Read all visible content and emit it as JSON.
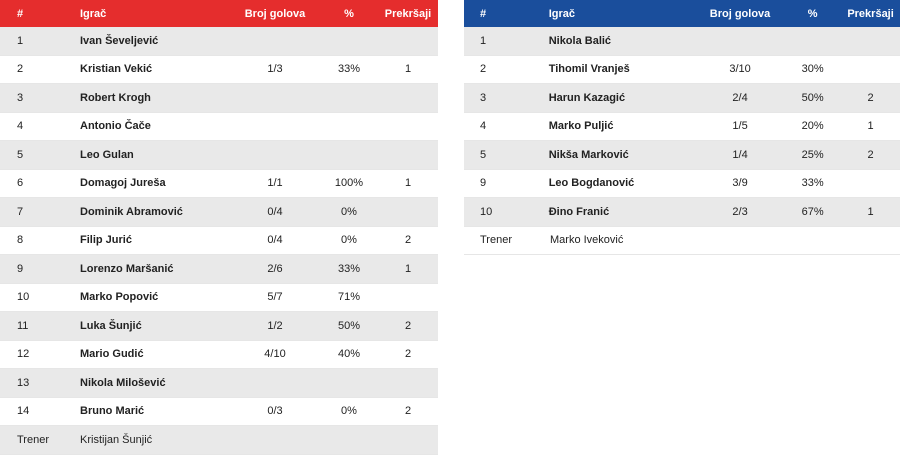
{
  "headers": {
    "num": "#",
    "player": "Igrač",
    "goals": "Broj golova",
    "pct": "%",
    "fouls": "Prekršaji"
  },
  "colors": {
    "home": "#e52d2d",
    "away": "#1a4e9c"
  },
  "home": {
    "rows": [
      {
        "num": "1",
        "name": "Ivan Ševeljević",
        "goals": "",
        "pct": "",
        "fouls": ""
      },
      {
        "num": "2",
        "name": "Kristian Vekić",
        "goals": "1/3",
        "pct": "33%",
        "fouls": "1"
      },
      {
        "num": "3",
        "name": "Robert Krogh",
        "goals": "",
        "pct": "",
        "fouls": ""
      },
      {
        "num": "4",
        "name": "Antonio Čače",
        "goals": "",
        "pct": "",
        "fouls": ""
      },
      {
        "num": "5",
        "name": "Leo Gulan",
        "goals": "",
        "pct": "",
        "fouls": ""
      },
      {
        "num": "6",
        "name": "Domagoj Jureša",
        "goals": "1/1",
        "pct": "100%",
        "fouls": "1"
      },
      {
        "num": "7",
        "name": "Dominik Abramović",
        "goals": "0/4",
        "pct": "0%",
        "fouls": ""
      },
      {
        "num": "8",
        "name": "Filip Jurić",
        "goals": "0/4",
        "pct": "0%",
        "fouls": "2"
      },
      {
        "num": "9",
        "name": "Lorenzo Maršanić",
        "goals": "2/6",
        "pct": "33%",
        "fouls": "1"
      },
      {
        "num": "10",
        "name": "Marko Popović",
        "goals": "5/7",
        "pct": "71%",
        "fouls": ""
      },
      {
        "num": "11",
        "name": "Luka Šunjić",
        "goals": "1/2",
        "pct": "50%",
        "fouls": "2"
      },
      {
        "num": "12",
        "name": "Mario Gudić",
        "goals": "4/10",
        "pct": "40%",
        "fouls": "2"
      },
      {
        "num": "13",
        "name": "Nikola Milošević",
        "goals": "",
        "pct": "",
        "fouls": ""
      },
      {
        "num": "14",
        "name": "Bruno Marić",
        "goals": "0/3",
        "pct": "0%",
        "fouls": "2"
      }
    ],
    "coach_label": "Trener",
    "coach": "Kristijan Šunjić"
  },
  "away": {
    "rows": [
      {
        "num": "1",
        "name": "Nikola Balić",
        "goals": "",
        "pct": "",
        "fouls": ""
      },
      {
        "num": "2",
        "name": "Tihomil Vranješ",
        "goals": "3/10",
        "pct": "30%",
        "fouls": ""
      },
      {
        "num": "3",
        "name": "Harun Kazagić",
        "goals": "2/4",
        "pct": "50%",
        "fouls": "2"
      },
      {
        "num": "4",
        "name": "Marko Puljić",
        "goals": "1/5",
        "pct": "20%",
        "fouls": "1"
      },
      {
        "num": "5",
        "name": "Nikša Marković",
        "goals": "1/4",
        "pct": "25%",
        "fouls": "2"
      },
      {
        "num": "9",
        "name": "Leo Bogdanović",
        "goals": "3/9",
        "pct": "33%",
        "fouls": ""
      },
      {
        "num": "10",
        "name": "Đino Franić",
        "goals": "2/3",
        "pct": "67%",
        "fouls": "1"
      }
    ],
    "coach_label": "Trener",
    "coach": "Marko Iveković"
  }
}
